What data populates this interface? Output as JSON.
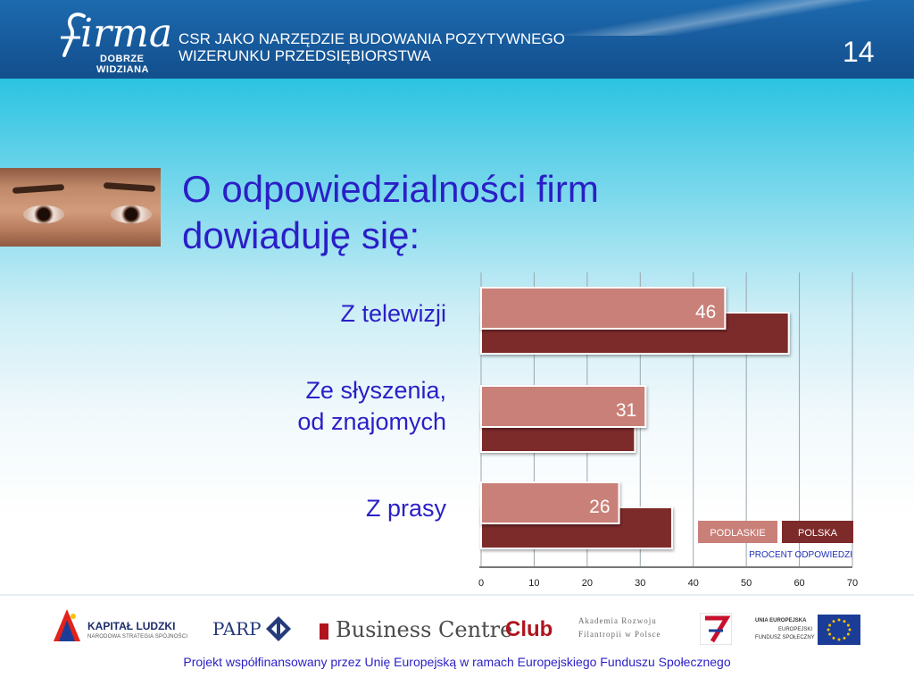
{
  "header": {
    "logo_main": "irma",
    "logo_line1": "DOBRZE",
    "logo_line2": "WIDZIANA",
    "title_line1": "CSR JAKO NARZĘDZIE  BUDOWANIA POZYTYWNEGO",
    "title_line2": "WIZERUNKU PRZEDSIĘBIORSTWA",
    "page_number": "14"
  },
  "slide": {
    "title_line1": "O odpowiedzialności firm",
    "title_line2": "dowiaduję się:"
  },
  "chart_data": {
    "type": "bar",
    "orientation": "horizontal",
    "categories": [
      [
        "Z telewizji"
      ],
      [
        "Ze słyszenia,",
        "od znajomych"
      ],
      [
        "Z prasy"
      ]
    ],
    "series": [
      {
        "name": "PODLASKIE",
        "values": [
          46,
          31,
          26
        ],
        "color": "#c98079",
        "labeled": true
      },
      {
        "name": "POLSKA",
        "values": [
          58,
          29,
          36
        ],
        "color": "#7d2a2a",
        "labeled": false
      }
    ],
    "xlim": [
      0,
      70
    ],
    "x_ticks": [
      "0",
      "10",
      "20",
      "30",
      "40",
      "50",
      "60",
      "70"
    ],
    "xlabel": "PROCENT ODPOWIEDZI",
    "grid": true,
    "legend_position": "bottom-right"
  },
  "footer": {
    "kapital_title": "KAPITAŁ LUDZKI",
    "kapital_sub": "NARODOWA STRATEGIA SPÓJNOŚCI",
    "parp": "PARP",
    "bcc_text": "Business Centre",
    "bcc_club": "Club",
    "afp_line1": "Akademia Rozwoju",
    "afp_line2": "Filantropii w Polsce",
    "ue_line1": "UNIA EUROPEJSKA",
    "ue_line2": "EUROPEJSKI",
    "ue_line3": "FUNDUSZ SPOŁECZNY",
    "text": "Projekt współfinansowany przez Unię Europejską w ramach Europejskiego Funduszu Społecznego"
  }
}
